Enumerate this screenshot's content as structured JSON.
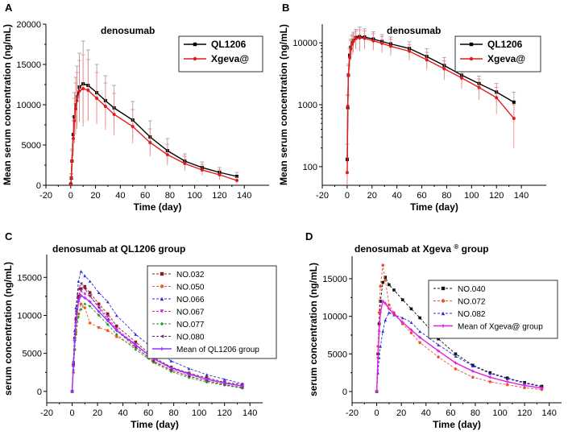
{
  "chart_data": [
    {
      "panel_label": "A",
      "type": "line",
      "title": "denosumab",
      "xlabel": "Time (day)",
      "ylabel": "Mean serum concentration (ng/mL)",
      "yscale": "linear",
      "xlim": [
        -20,
        160
      ],
      "ylim": [
        0,
        20000
      ],
      "xticks": [
        -20,
        0,
        20,
        40,
        60,
        80,
        100,
        120,
        140
      ],
      "yticks": [
        0,
        5000,
        10000,
        15000,
        20000
      ],
      "legend": "top-right",
      "series": [
        {
          "name": "QL1206",
          "color": "#000000",
          "marker": "square",
          "dash": "",
          "x": [
            0.04,
            0.5,
            1,
            2,
            3,
            4,
            5,
            7,
            10,
            14,
            21,
            28,
            35,
            50,
            64,
            78,
            92,
            106,
            120,
            134
          ],
          "y": [
            130,
            900,
            3000,
            6300,
            8500,
            10000,
            11000,
            12200,
            12600,
            12400,
            11500,
            10500,
            9600,
            8100,
            6000,
            4300,
            3000,
            2200,
            1600,
            1100
          ],
          "err": [
            100,
            500,
            1300,
            2200,
            3000,
            3400,
            3800,
            4200,
            5300,
            4400,
            3500,
            3100,
            2800,
            2300,
            2000,
            1500,
            900,
            700,
            600,
            500
          ]
        },
        {
          "name": "Xgeva@",
          "color": "#e41a1c",
          "marker": "circle",
          "dash": "",
          "x": [
            0.04,
            0.5,
            1,
            2,
            3,
            4,
            5,
            7,
            10,
            14,
            21,
            28,
            35,
            50,
            64,
            78,
            92,
            106,
            120,
            134
          ],
          "y": [
            80,
            950,
            3000,
            5800,
            8000,
            9500,
            10500,
            11700,
            12000,
            11800,
            10800,
            9800,
            8800,
            7300,
            5300,
            3800,
            2700,
            1900,
            1300,
            600
          ],
          "err": [
            60,
            500,
            1500,
            2200,
            2800,
            3200,
            3500,
            3800,
            4200,
            3800,
            3200,
            2900,
            2600,
            2100,
            1700,
            1300,
            900,
            700,
            600,
            400
          ]
        }
      ]
    },
    {
      "panel_label": "B",
      "type": "line",
      "title": "denosumab",
      "xlabel": "Time (day)",
      "ylabel": "Mean serum concentration (ng/mL)",
      "yscale": "log",
      "xlim": [
        -20,
        160
      ],
      "ylim": [
        50,
        20000
      ],
      "xticks": [
        -20,
        0,
        20,
        40,
        60,
        80,
        100,
        120,
        140
      ],
      "yticks": [
        100,
        1000,
        10000
      ],
      "legend": "top-right",
      "series": [
        {
          "name": "QL1206",
          "color": "#000000",
          "marker": "square",
          "dash": "",
          "x": [
            0.04,
            0.5,
            1,
            2,
            3,
            4,
            5,
            7,
            10,
            14,
            21,
            28,
            35,
            50,
            64,
            78,
            92,
            106,
            120,
            134
          ],
          "y": [
            130,
            900,
            3000,
            6300,
            8500,
            10000,
            11000,
            12200,
            12600,
            12400,
            11500,
            10500,
            9600,
            8100,
            6000,
            4300,
            3000,
            2200,
            1600,
            1100
          ],
          "err": [
            100,
            500,
            1300,
            2200,
            3000,
            3400,
            3800,
            4200,
            5300,
            4400,
            3500,
            3100,
            2800,
            2300,
            2000,
            1500,
            900,
            700,
            600,
            500
          ]
        },
        {
          "name": "Xgeva@",
          "color": "#e41a1c",
          "marker": "circle",
          "dash": "",
          "x": [
            0.04,
            0.5,
            1,
            2,
            3,
            4,
            5,
            7,
            10,
            14,
            21,
            28,
            35,
            50,
            64,
            78,
            92,
            106,
            120,
            134
          ],
          "y": [
            80,
            950,
            3000,
            5800,
            8000,
            9500,
            10500,
            11700,
            12000,
            11800,
            10800,
            9800,
            8800,
            7300,
            5300,
            3800,
            2700,
            1900,
            1300,
            600
          ],
          "err": [
            60,
            500,
            1500,
            2200,
            2800,
            3200,
            3500,
            3800,
            4200,
            3800,
            3200,
            2900,
            2600,
            2100,
            1700,
            1300,
            900,
            700,
            600,
            400
          ]
        }
      ]
    },
    {
      "panel_label": "C",
      "type": "line",
      "title": "denosumab at QL1206 group",
      "xlabel": "Time (day)",
      "ylabel": "serum concentration (ng/mL)",
      "yscale": "linear",
      "xlim": [
        -20,
        150
      ],
      "ylim": [
        -1500,
        18000
      ],
      "xticks": [
        -20,
        0,
        20,
        40,
        60,
        80,
        100,
        120,
        140
      ],
      "yticks": [
        0,
        5000,
        10000,
        15000
      ],
      "legend": "top-right",
      "series": [
        {
          "name": "NO.032",
          "color": "#8b1a1a",
          "marker": "square",
          "dash": "3,2",
          "x": [
            0,
            1,
            2,
            3,
            5,
            7,
            10,
            14,
            21,
            28,
            35,
            50,
            64,
            78,
            92,
            106,
            120,
            134
          ],
          "y": [
            0,
            3500,
            7000,
            9500,
            12500,
            13500,
            13800,
            13000,
            11500,
            10200,
            8600,
            6500,
            4500,
            3200,
            2400,
            1800,
            1200,
            900
          ]
        },
        {
          "name": "NO.050",
          "color": "#e8601c",
          "marker": "circle",
          "dash": "3,2",
          "x": [
            0,
            1,
            2,
            3,
            5,
            7,
            10,
            14,
            21,
            28,
            35,
            50,
            64,
            78,
            92,
            106,
            120,
            134
          ],
          "y": [
            0,
            2500,
            5500,
            7800,
            10200,
            11500,
            11000,
            9000,
            8400,
            8000,
            7200,
            5800,
            3900,
            2800,
            2000,
            1400,
            900,
            500
          ]
        },
        {
          "name": "NO.066",
          "color": "#2b2bd6",
          "marker": "triangle",
          "dash": "3,2",
          "x": [
            0,
            1,
            2,
            3,
            5,
            7,
            10,
            14,
            21,
            28,
            35,
            50,
            64,
            78,
            92,
            106,
            120,
            134
          ],
          "y": [
            0,
            4000,
            8000,
            11000,
            14500,
            15800,
            15200,
            14500,
            13000,
            11800,
            10000,
            7500,
            5600,
            4000,
            3000,
            2200,
            1600,
            1000
          ]
        },
        {
          "name": "NO.067",
          "color": "#d81bd8",
          "marker": "triangle-down",
          "dash": "3,2",
          "x": [
            0,
            1,
            2,
            3,
            5,
            7,
            10,
            14,
            21,
            28,
            35,
            50,
            64,
            78,
            92,
            106,
            120,
            134
          ],
          "y": [
            0,
            3200,
            6800,
            9200,
            12000,
            13200,
            12800,
            12500,
            11200,
            9800,
            8200,
            6200,
            4300,
            3000,
            2200,
            1600,
            1100,
            700
          ]
        },
        {
          "name": "NO.077",
          "color": "#1f9a1f",
          "marker": "diamond",
          "dash": "3,2",
          "x": [
            0,
            1,
            2,
            3,
            5,
            7,
            10,
            14,
            21,
            28,
            35,
            50,
            64,
            78,
            92,
            106,
            120,
            134
          ],
          "y": [
            0,
            2800,
            5500,
            7500,
            9800,
            10800,
            11500,
            11200,
            10000,
            8800,
            7500,
            5500,
            3800,
            2600,
            1800,
            1200,
            800,
            400
          ]
        },
        {
          "name": "NO.080",
          "color": "#7a1f7a",
          "marker": "triangle-left",
          "dash": "3,2",
          "x": [
            0,
            1,
            2,
            3,
            5,
            7,
            10,
            14,
            21,
            28,
            35,
            50,
            64,
            78,
            92,
            106,
            120,
            134
          ],
          "y": [
            0,
            3800,
            7500,
            10500,
            13500,
            14200,
            13500,
            12600,
            11000,
            9500,
            8000,
            5800,
            4000,
            2800,
            2000,
            1400,
            900,
            500
          ]
        },
        {
          "name": "Mean of QL1206 group",
          "color": "#9b30ff",
          "marker": "cross",
          "dash": "",
          "x": [
            0,
            1,
            2,
            3,
            5,
            7,
            10,
            14,
            21,
            28,
            35,
            50,
            64,
            78,
            92,
            106,
            120,
            134
          ],
          "y": [
            0,
            3300,
            6700,
            9000,
            11800,
            12600,
            12300,
            11800,
            10500,
            9300,
            8000,
            6100,
            4300,
            3100,
            2300,
            1600,
            1100,
            700
          ]
        }
      ]
    },
    {
      "panel_label": "D",
      "type": "line",
      "title": "denosumab at Xgeva",
      "title_superscript": "®",
      "title_suffix": "group",
      "xlabel": "Time (day)",
      "ylabel": "serum concentration (ng/mL)",
      "yscale": "linear",
      "xlim": [
        -20,
        150
      ],
      "ylim": [
        -1500,
        18000
      ],
      "xticks": [
        -20,
        0,
        20,
        40,
        60,
        80,
        100,
        120,
        140
      ],
      "yticks": [
        0,
        5000,
        10000,
        15000
      ],
      "legend": "top-right",
      "series": [
        {
          "name": "NO.040",
          "color": "#111111",
          "marker": "square",
          "dash": "3,2",
          "x": [
            0,
            1,
            2,
            3,
            5,
            7,
            10,
            14,
            21,
            28,
            35,
            50,
            64,
            78,
            92,
            106,
            120,
            134
          ],
          "y": [
            0,
            5000,
            9000,
            12000,
            14500,
            15200,
            14200,
            13500,
            12200,
            11000,
            9800,
            7000,
            5000,
            3500,
            2500,
            1800,
            1200,
            700
          ]
        },
        {
          "name": "NO.072",
          "color": "#f05030",
          "marker": "circle",
          "dash": "3,2",
          "x": [
            0,
            1,
            2,
            3,
            5,
            7,
            10,
            14,
            21,
            28,
            35,
            50,
            64,
            78,
            92,
            106,
            120,
            134
          ],
          "y": [
            0,
            6000,
            10500,
            14000,
            16800,
            14800,
            11500,
            10500,
            9000,
            7800,
            6500,
            4600,
            3000,
            1900,
            1300,
            900,
            500,
            250
          ]
        },
        {
          "name": "NO.082",
          "color": "#2b2bd6",
          "marker": "triangle",
          "dash": "3,2",
          "x": [
            0,
            1,
            2,
            3,
            5,
            7,
            10,
            14,
            21,
            28,
            35,
            50,
            64,
            78,
            92,
            106,
            120,
            134
          ],
          "y": [
            0,
            2500,
            4500,
            6000,
            8000,
            9500,
            10500,
            10200,
            9800,
            9200,
            8000,
            6200,
            4700,
            3400,
            2400,
            1700,
            1100,
            600
          ]
        },
        {
          "name": "Mean of Xgeva@ group",
          "color": "#e020e0",
          "marker": "cross",
          "dash": "",
          "x": [
            0,
            1,
            2,
            3,
            5,
            7,
            10,
            14,
            21,
            28,
            35,
            50,
            64,
            78,
            92,
            106,
            120,
            134
          ],
          "y": [
            0,
            4500,
            8000,
            10500,
            12000,
            11700,
            11000,
            10300,
            9200,
            8200,
            7200,
            5400,
            3800,
            2700,
            1900,
            1300,
            800,
            450
          ]
        }
      ]
    }
  ]
}
